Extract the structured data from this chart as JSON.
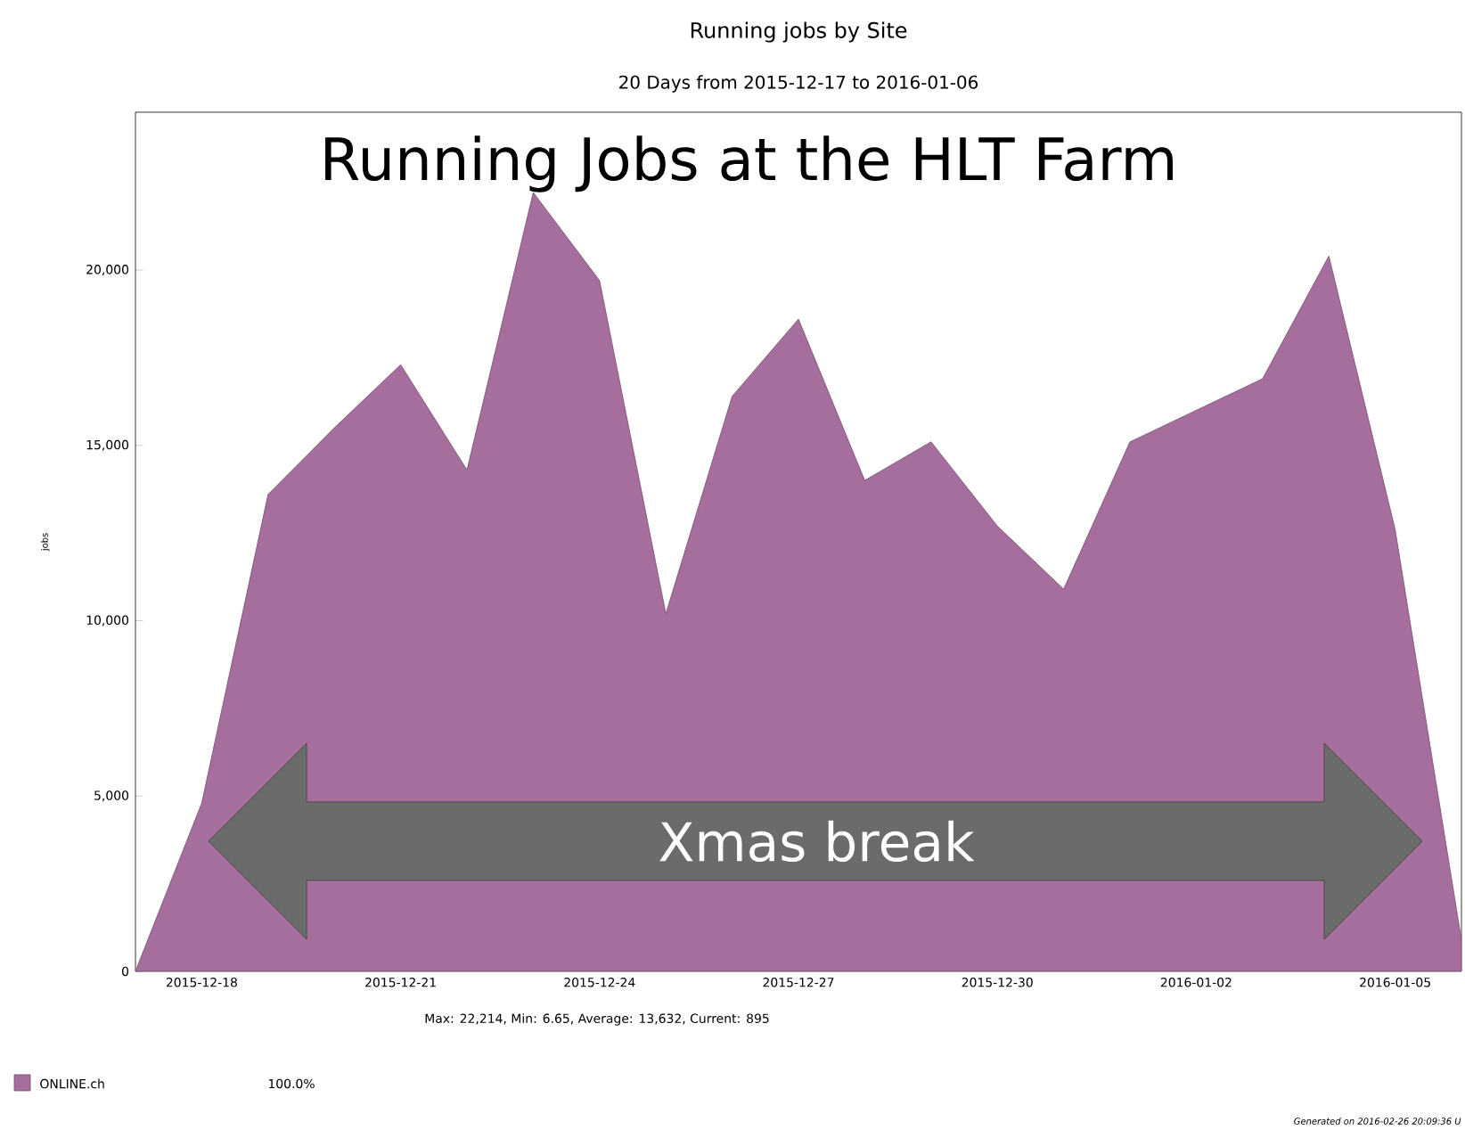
{
  "chart_data": {
    "type": "area",
    "title": "Running jobs by Site",
    "subtitle": "20 Days from 2015-12-17 to 2016-01-06",
    "ylabel": "jobs",
    "x": [
      "2015-12-17",
      "2015-12-18",
      "2015-12-19",
      "2015-12-20",
      "2015-12-21",
      "2015-12-22",
      "2015-12-23",
      "2015-12-24",
      "2015-12-25",
      "2015-12-26",
      "2015-12-27",
      "2015-12-28",
      "2015-12-29",
      "2015-12-30",
      "2015-12-31",
      "2016-01-01",
      "2016-01-02",
      "2016-01-03",
      "2016-01-04",
      "2016-01-05",
      "2016-01-06"
    ],
    "series": [
      {
        "name": "ONLINE.ch",
        "color": "#a56e9c",
        "values": [
          6.65,
          4800,
          13600,
          15500,
          17300,
          14300,
          22214,
          19700,
          10200,
          16400,
          18600,
          14000,
          15100,
          12700,
          10900,
          15100,
          16000,
          16900,
          20400,
          12600,
          895
        ]
      }
    ],
    "xlim": [
      "2015-12-17",
      "2016-01-06"
    ],
    "xticks": [
      "2015-12-18",
      "2015-12-21",
      "2015-12-24",
      "2015-12-27",
      "2015-12-30",
      "2016-01-02",
      "2016-01-05"
    ],
    "ylim": [
      0,
      24500
    ],
    "yticks": [
      {
        "value": 0,
        "label": "0"
      },
      {
        "value": 5000,
        "label": "5,000"
      },
      {
        "value": 10000,
        "label": "10,000"
      },
      {
        "value": 15000,
        "label": "15,000"
      },
      {
        "value": 20000,
        "label": "20,000"
      }
    ],
    "legend": "bottom left",
    "annotations": [
      "Running Jobs at the HLT Farm",
      "Max: 22,214, Min: 6.65, Average: 13,632, Current: 895",
      "Xmas break",
      "100.0%",
      "Generated on 2016-02-26 20:09:36 U"
    ]
  }
}
